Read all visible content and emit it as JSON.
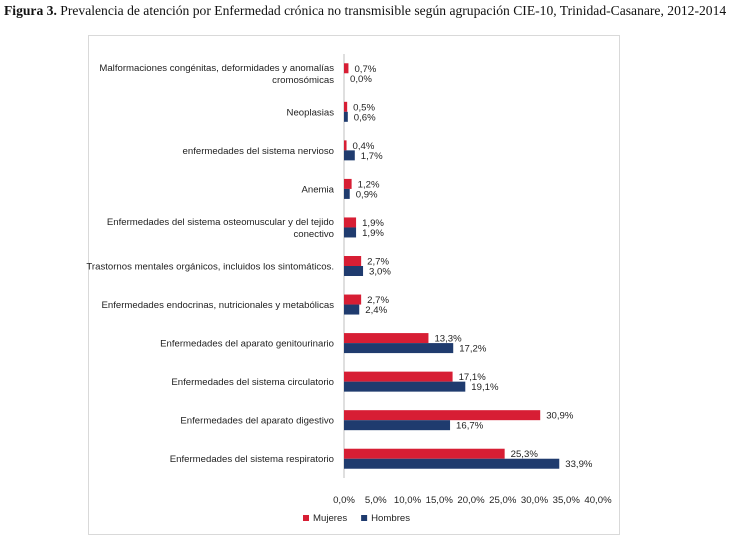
{
  "figure": {
    "label": "Figura 3.",
    "caption": "Prevalencia de atención por Enfermedad crónica no transmisible según agrupación CIE-10, Trinidad-Casanare, 2012-2014"
  },
  "chart_data": {
    "type": "bar",
    "orientation": "horizontal",
    "categories": [
      "Malformaciones congénitas, deformidades y anomalías cromosómicas",
      "Neoplasias",
      "enfermedades del sistema nervioso",
      "Anemia",
      "Enfermedades del sistema osteomuscular y del tejido conectivo",
      "Trastornos mentales orgánicos, incluidos los sintomáticos.",
      "Enfermedades endocrinas, nutricionales y metabólicas",
      "Enfermedades del aparato genitourinario",
      "Enfermedades del sistema circulatorio",
      "Enfermedades del aparato digestivo",
      "Enfermedades del sistema respiratorio"
    ],
    "category_lines": [
      [
        "Malformaciones congénitas, deformidades y anomalías",
        "cromosómicas"
      ],
      [
        "Neoplasias"
      ],
      [
        "enfermedades del sistema nervioso"
      ],
      [
        "Anemia"
      ],
      [
        "Enfermedades del sistema osteomuscular y del tejido",
        "conectivo"
      ],
      [
        "Trastornos mentales orgánicos, incluidos los sintomáticos."
      ],
      [
        "Enfermedades endocrinas, nutricionales y metabólicas"
      ],
      [
        "Enfermedades del aparato genitourinario"
      ],
      [
        "Enfermedades del sistema circulatorio"
      ],
      [
        "Enfermedades del aparato digestivo"
      ],
      [
        "Enfermedades del sistema respiratorio"
      ]
    ],
    "series": [
      {
        "name": "Mujeres",
        "color": "#d71e34",
        "values": [
          0.7,
          0.5,
          0.4,
          1.2,
          1.9,
          2.7,
          2.7,
          13.3,
          17.1,
          30.9,
          25.3
        ],
        "labels": [
          "0,7%",
          "0,5%",
          "0,4%",
          "1,2%",
          "1,9%",
          "2,7%",
          "2,7%",
          "13,3%",
          "17,1%",
          "30,9%",
          "25,3%"
        ]
      },
      {
        "name": "Hombres",
        "color": "#1f3b6e",
        "values": [
          0.0,
          0.6,
          1.7,
          0.9,
          1.9,
          3.0,
          2.4,
          17.2,
          19.1,
          16.7,
          33.9
        ],
        "labels": [
          "0,0%",
          "0,6%",
          "1,7%",
          "0,9%",
          "1,9%",
          "3,0%",
          "2,4%",
          "17,2%",
          "19,1%",
          "16,7%",
          "33,9%"
        ]
      }
    ],
    "xlim": [
      0,
      40
    ],
    "x_ticks": [
      0,
      5,
      10,
      15,
      20,
      25,
      30,
      35,
      40
    ],
    "x_tick_labels": [
      "0,0%",
      "5,0%",
      "10,0%",
      "15,0%",
      "20,0%",
      "25,0%",
      "30,0%",
      "35,0%",
      "40,0%"
    ],
    "grid": false,
    "legend_position": "bottom"
  }
}
